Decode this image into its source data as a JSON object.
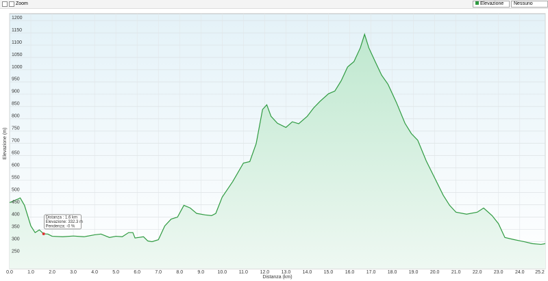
{
  "ui": {
    "zoom": "Zoom",
    "series_select": "Elevazione",
    "secondary_select": "Nessuno"
  },
  "chart_data": {
    "type": "area-line",
    "xlabel": "Distanza  (km)",
    "ylabel": "Elevazione (m)",
    "x": [
      0,
      0.3,
      0.5,
      0.7,
      1.0,
      1.2,
      1.4,
      1.6,
      1.8,
      2.0,
      2.5,
      3.0,
      3.5,
      4.0,
      4.3,
      4.7,
      5.0,
      5.3,
      5.6,
      5.8,
      5.9,
      6.3,
      6.5,
      6.7,
      7.0,
      7.3,
      7.6,
      7.9,
      8.2,
      8.5,
      8.8,
      9.2,
      9.5,
      9.7,
      10.0,
      10.5,
      11.0,
      11.3,
      11.6,
      11.9,
      12.1,
      12.3,
      12.6,
      13.0,
      13.3,
      13.6,
      14.0,
      14.3,
      14.6,
      15.0,
      15.3,
      15.6,
      15.9,
      16.2,
      16.5,
      16.7,
      16.9,
      17.2,
      17.5,
      17.8,
      18.2,
      18.6,
      18.9,
      19.2,
      19.6,
      20.0,
      20.4,
      20.7,
      21.0,
      21.5,
      22.0,
      22.3,
      22.7,
      23.0,
      23.3,
      23.7,
      24.2,
      24.6,
      25.0,
      25.2
    ],
    "y": [
      459,
      470,
      478,
      448,
      364,
      337,
      348,
      332,
      331,
      322,
      320,
      323,
      320,
      328,
      331,
      317,
      322,
      320,
      337,
      337,
      315,
      320,
      303,
      300,
      308,
      364,
      392,
      400,
      448,
      437,
      415,
      409,
      406,
      415,
      481,
      545,
      620,
      626,
      699,
      838,
      857,
      810,
      782,
      765,
      788,
      780,
      810,
      844,
      871,
      902,
      913,
      955,
      1011,
      1033,
      1089,
      1144,
      1089,
      1033,
      978,
      941,
      866,
      782,
      740,
      713,
      629,
      559,
      489,
      448,
      420,
      412,
      420,
      437,
      406,
      373,
      317,
      309,
      300,
      292,
      289,
      292
    ],
    "color": "#2e9a40",
    "xlim": [
      0,
      25.2
    ],
    "ylim": [
      190,
      1228
    ],
    "xticks": [
      {
        "value": 0,
        "label": "0.0"
      },
      {
        "value": 1,
        "label": "1.0"
      },
      {
        "value": 2,
        "label": "2.0"
      },
      {
        "value": 3,
        "label": "3.0"
      },
      {
        "value": 4,
        "label": "4.0"
      },
      {
        "value": 5,
        "label": "5.0"
      },
      {
        "value": 6,
        "label": "6.0"
      },
      {
        "value": 7,
        "label": "7.0"
      },
      {
        "value": 8,
        "label": "8.0"
      },
      {
        "value": 9,
        "label": "9.0"
      },
      {
        "value": 10,
        "label": "10.0"
      },
      {
        "value": 11,
        "label": "11.0"
      },
      {
        "value": 12,
        "label": "12.0"
      },
      {
        "value": 13,
        "label": "13.0"
      },
      {
        "value": 14,
        "label": "14.0"
      },
      {
        "value": 15,
        "label": "15.0"
      },
      {
        "value": 16,
        "label": "16.0"
      },
      {
        "value": 17,
        "label": "17.0"
      },
      {
        "value": 18,
        "label": "18.0"
      },
      {
        "value": 19,
        "label": "19.0"
      },
      {
        "value": 20,
        "label": "20.0"
      },
      {
        "value": 21,
        "label": "21.0"
      },
      {
        "value": 22,
        "label": "22.0"
      },
      {
        "value": 23,
        "label": "23.0"
      },
      {
        "value": 24,
        "label": "24.0"
      },
      25.2
    ],
    "yticks": [
      250,
      300,
      350,
      400,
      450,
      500,
      550,
      600,
      650,
      700,
      750,
      800,
      850,
      900,
      950,
      1000,
      1050,
      1100,
      1150,
      1200
    ],
    "grid": true,
    "tooltip": {
      "x": 1.6,
      "lines": [
        "Distanza : 1.6 km",
        "Elevazione: 332.3 m",
        "Pendenza: -0 %"
      ]
    }
  }
}
